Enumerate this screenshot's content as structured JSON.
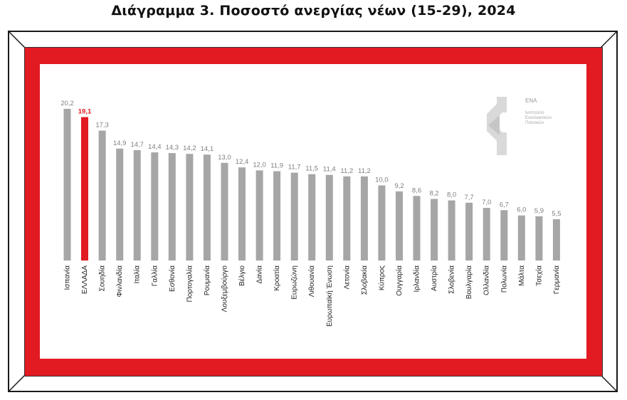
{
  "page": {
    "title": "Διάγραμμα 3. Ποσοστό ανεργίας νέων (15-29), 2024"
  },
  "logo": {
    "name": "ΕΝΑ",
    "subtitle_lines": [
      "Ινστιτούτο",
      "Εναλλακτικών",
      "Πολιτικών"
    ],
    "icon": "ena-logo-icon"
  },
  "colors": {
    "bar": "#a6a6a6",
    "highlight": "#e21a22",
    "frame": "#e21a22",
    "value_label": "#7f7f7f"
  },
  "chart_data": {
    "type": "bar",
    "title": "Διάγραμμα 3. Ποσοστό ανεργίας νέων (15-29), 2024",
    "xlabel": "",
    "ylabel": "",
    "ylim": [
      0,
      22
    ],
    "grid": false,
    "legend": "none",
    "highlight_category": "ΕΛΛΑΔΑ",
    "categories": [
      "Ισπανία",
      "ΕΛΛΑΔΑ",
      "Σουηδία",
      "Φινλανδία",
      "Ιταλία",
      "Γαλλία",
      "Εσθονία",
      "Πορτογαλία",
      "Ρουμανία",
      "Λουξεμβούργο",
      "Βέλγιο",
      "Δανία",
      "Κροατία",
      "Ευρωζώνη",
      "Λιθουανία",
      "Ευρωπαϊκή Ένωση",
      "Λετονία",
      "Σλοβακία",
      "Κύπρος",
      "Ουγγαρία",
      "Ιρλανδία",
      "Αυστρία",
      "Σλοβενία",
      "Βουλγαρία",
      "Ολλανδία",
      "Πολωνία",
      "Μάλτα",
      "Τσεχία",
      "Γερμανία"
    ],
    "values": [
      20.2,
      19.1,
      17.3,
      14.9,
      14.7,
      14.4,
      14.3,
      14.2,
      14.1,
      13.0,
      12.4,
      12.0,
      11.9,
      11.7,
      11.5,
      11.4,
      11.2,
      11.2,
      10.0,
      9.2,
      8.6,
      8.2,
      8.0,
      7.7,
      7.0,
      6.7,
      6.0,
      5.9,
      5.5
    ],
    "value_labels": [
      "20,2",
      "19,1",
      "17,3",
      "14,9",
      "14,7",
      "14,4",
      "14,3",
      "14,2",
      "14,1",
      "13,0",
      "12,4",
      "12,0",
      "11,9",
      "11,7",
      "11,5",
      "11,4",
      "11,2",
      "11,2",
      "10,0",
      "9,2",
      "8,6",
      "8,2",
      "8,0",
      "7,7",
      "7,0",
      "6,7",
      "6,0",
      "5,9",
      "5,5"
    ]
  }
}
